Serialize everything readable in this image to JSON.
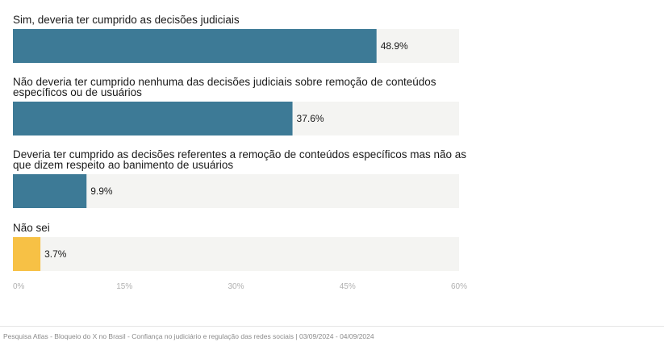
{
  "chart_data": {
    "type": "bar",
    "orientation": "horizontal",
    "categories": [
      [
        "Sim, deveria ter cumprido as decisões judiciais"
      ],
      [
        "Não deveria ter cumprido nenhuma das decisões judiciais sobre remoção de conteúdos",
        "específicos ou de usuários"
      ],
      [
        "Deveria ter cumprido as decisões referentes a remoção de conteúdos específicos mas não as",
        "que dizem respeito ao banimento de usuários"
      ],
      [
        "Não sei"
      ]
    ],
    "values": [
      48.9,
      37.6,
      9.9,
      3.7
    ],
    "value_labels": [
      "48.9%",
      "37.6%",
      "9.9%",
      "3.7%"
    ],
    "bar_colors": [
      "#3d7a96",
      "#3d7a96",
      "#3d7a96",
      "#f7c145"
    ],
    "track_color": "#f4f4f2",
    "xlim": [
      0,
      60
    ],
    "ticks": [
      0,
      15,
      30,
      45,
      60
    ],
    "tick_labels": [
      "0%",
      "15%",
      "30%",
      "45%",
      "60%"
    ],
    "title": "",
    "xlabel": "",
    "ylabel": ""
  },
  "footer": {
    "source": "Pesquisa Atlas - Bloqueio do X no Brasil - Confiança no judiciário e regulação das redes sociais | 03/09/2024 - 04/09/2024"
  }
}
